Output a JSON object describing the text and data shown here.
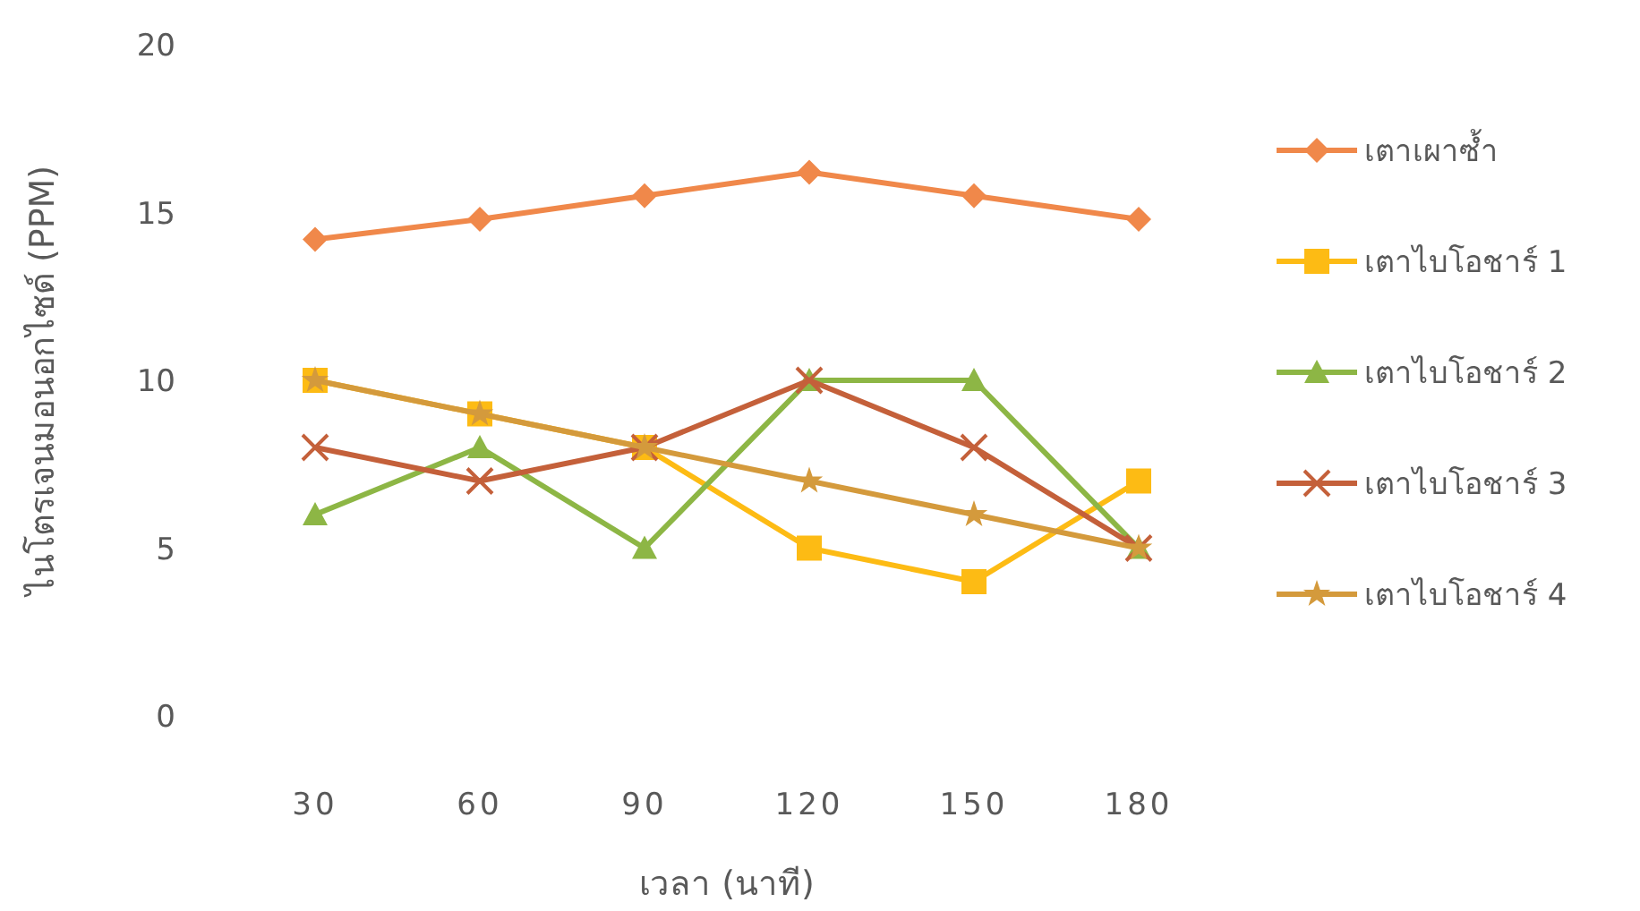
{
  "chart_data": {
    "type": "line",
    "xlabel": "เวลา (นาที)",
    "ylabel": "ไนโตรเจนมอนอกไซด์ (PPM)",
    "categories": [
      "30",
      "60",
      "90",
      "120",
      "150",
      "180"
    ],
    "ylim": [
      0,
      20
    ],
    "yticks": [
      0,
      5,
      10,
      15,
      20
    ],
    "grid": false,
    "legend": "right",
    "line_style": "solid",
    "series": [
      {
        "name": "เตาเผาซ้ำ",
        "color": "#f0884a",
        "marker": "diamond",
        "values": [
          14.2,
          14.8,
          15.5,
          16.2,
          15.5,
          14.8
        ]
      },
      {
        "name": "เตาไบโอชาร์ 1",
        "color": "#fdbb14",
        "marker": "square",
        "values": [
          10,
          9,
          8,
          5,
          4,
          7
        ]
      },
      {
        "name": "เตาไบโอชาร์ 2",
        "color": "#8db645",
        "marker": "triangle",
        "values": [
          6,
          8,
          5,
          10,
          10,
          5
        ]
      },
      {
        "name": "เตาไบโอชาร์ 3",
        "color": "#c4603a",
        "marker": "cross",
        "values": [
          8,
          7,
          8,
          10,
          8,
          5
        ]
      },
      {
        "name": "เตาไบโอชาร์ 4",
        "color": "#d49a3c",
        "marker": "star",
        "values": [
          10,
          9,
          8,
          7,
          6,
          5
        ]
      }
    ]
  }
}
